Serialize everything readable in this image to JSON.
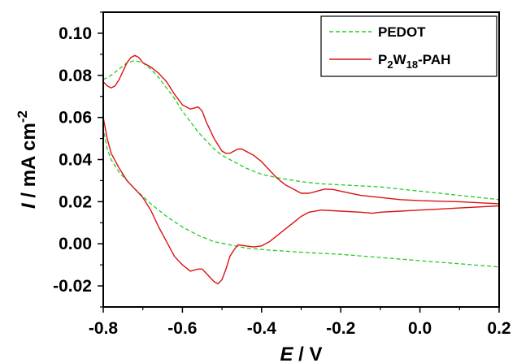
{
  "chart_data": {
    "type": "line",
    "xlabel": {
      "var": "E",
      "unit": " / V"
    },
    "ylabel": {
      "var": "I",
      "unit": " / mA cm",
      "exp": "-2"
    },
    "xlim": [
      -0.8,
      0.2
    ],
    "ylim": [
      -0.03,
      0.11
    ],
    "xticks": [
      -0.8,
      -0.6,
      -0.4,
      -0.2,
      0.0,
      0.2
    ],
    "xtick_labels": [
      "-0.8",
      "-0.6",
      "-0.4",
      "-0.2",
      "0.0",
      "0.2"
    ],
    "yticks": [
      -0.02,
      0.0,
      0.02,
      0.04,
      0.06,
      0.08,
      0.1
    ],
    "ytick_labels": [
      "-0.02",
      "0.00",
      "0.02",
      "0.04",
      "0.06",
      "0.08",
      "0.10"
    ],
    "grid": false,
    "legend_position": "top-right",
    "series": [
      {
        "name": "PEDOT",
        "name_parts": [
          {
            "t": "PEDOT"
          }
        ],
        "color": "#22cc22",
        "dash": true,
        "points": [
          [
            -0.8,
            0.078
          ],
          [
            -0.78,
            0.08
          ],
          [
            -0.76,
            0.083
          ],
          [
            -0.74,
            0.086
          ],
          [
            -0.72,
            0.087
          ],
          [
            -0.7,
            0.086
          ],
          [
            -0.68,
            0.083
          ],
          [
            -0.66,
            0.079
          ],
          [
            -0.64,
            0.074
          ],
          [
            -0.62,
            0.069
          ],
          [
            -0.6,
            0.063
          ],
          [
            -0.58,
            0.058
          ],
          [
            -0.56,
            0.053
          ],
          [
            -0.54,
            0.049
          ],
          [
            -0.52,
            0.045
          ],
          [
            -0.5,
            0.042
          ],
          [
            -0.48,
            0.04
          ],
          [
            -0.46,
            0.038
          ],
          [
            -0.44,
            0.036
          ],
          [
            -0.42,
            0.0345
          ],
          [
            -0.4,
            0.033
          ],
          [
            -0.35,
            0.031
          ],
          [
            -0.3,
            0.0295
          ],
          [
            -0.25,
            0.0285
          ],
          [
            -0.2,
            0.028
          ],
          [
            -0.1,
            0.027
          ],
          [
            0.0,
            0.025
          ],
          [
            0.1,
            0.023
          ],
          [
            0.2,
            0.021
          ],
          [
            0.2,
            0.008
          ],
          [
            0.2,
            -0.011
          ],
          [
            0.1,
            -0.0095
          ],
          [
            0.0,
            -0.008
          ],
          [
            -0.1,
            -0.0065
          ],
          [
            -0.2,
            -0.005
          ],
          [
            -0.3,
            -0.004
          ],
          [
            -0.38,
            -0.003
          ],
          [
            -0.44,
            -0.002
          ],
          [
            -0.48,
            -0.0005
          ],
          [
            -0.52,
            0.001
          ],
          [
            -0.56,
            0.004
          ],
          [
            -0.6,
            0.008
          ],
          [
            -0.64,
            0.013
          ],
          [
            -0.68,
            0.019
          ],
          [
            -0.72,
            0.026
          ],
          [
            -0.76,
            0.034
          ],
          [
            -0.78,
            0.04
          ],
          [
            -0.79,
            0.045
          ],
          [
            -0.8,
            0.055
          ],
          [
            -0.8,
            0.078
          ]
        ]
      },
      {
        "name": "P2W18-PAH",
        "name_parts": [
          {
            "t": "P"
          },
          {
            "t": "2",
            "sub": true
          },
          {
            "t": "W"
          },
          {
            "t": "18",
            "sub": true
          },
          {
            "t": "-PAH"
          }
        ],
        "color": "#dd1111",
        "dash": false,
        "points": [
          [
            -0.8,
            0.077
          ],
          [
            -0.79,
            0.075
          ],
          [
            -0.78,
            0.074
          ],
          [
            -0.77,
            0.075
          ],
          [
            -0.76,
            0.078
          ],
          [
            -0.75,
            0.082
          ],
          [
            -0.74,
            0.086
          ],
          [
            -0.73,
            0.0885
          ],
          [
            -0.72,
            0.0895
          ],
          [
            -0.71,
            0.0885
          ],
          [
            -0.7,
            0.086
          ],
          [
            -0.68,
            0.084
          ],
          [
            -0.66,
            0.081
          ],
          [
            -0.64,
            0.077
          ],
          [
            -0.62,
            0.071
          ],
          [
            -0.6,
            0.066
          ],
          [
            -0.58,
            0.064
          ],
          [
            -0.56,
            0.065
          ],
          [
            -0.55,
            0.063
          ],
          [
            -0.54,
            0.058
          ],
          [
            -0.52,
            0.05
          ],
          [
            -0.5,
            0.044
          ],
          [
            -0.49,
            0.043
          ],
          [
            -0.48,
            0.043
          ],
          [
            -0.46,
            0.045
          ],
          [
            -0.45,
            0.045
          ],
          [
            -0.44,
            0.044
          ],
          [
            -0.42,
            0.042
          ],
          [
            -0.4,
            0.039
          ],
          [
            -0.38,
            0.035
          ],
          [
            -0.36,
            0.031
          ],
          [
            -0.34,
            0.028
          ],
          [
            -0.32,
            0.026
          ],
          [
            -0.3,
            0.024
          ],
          [
            -0.28,
            0.024
          ],
          [
            -0.26,
            0.025
          ],
          [
            -0.24,
            0.026
          ],
          [
            -0.22,
            0.0258
          ],
          [
            -0.2,
            0.025
          ],
          [
            -0.15,
            0.023
          ],
          [
            -0.1,
            0.022
          ],
          [
            -0.05,
            0.021
          ],
          [
            0.0,
            0.0205
          ],
          [
            0.1,
            0.02
          ],
          [
            0.2,
            0.019
          ],
          [
            0.2,
            0.018
          ],
          [
            0.15,
            0.0175
          ],
          [
            0.1,
            0.017
          ],
          [
            0.05,
            0.0165
          ],
          [
            0.0,
            0.016
          ],
          [
            -0.05,
            0.0155
          ],
          [
            -0.1,
            0.015
          ],
          [
            -0.12,
            0.0145
          ],
          [
            -0.15,
            0.015
          ],
          [
            -0.2,
            0.0155
          ],
          [
            -0.25,
            0.016
          ],
          [
            -0.28,
            0.015
          ],
          [
            -0.3,
            0.013
          ],
          [
            -0.32,
            0.01
          ],
          [
            -0.34,
            0.007
          ],
          [
            -0.36,
            0.004
          ],
          [
            -0.38,
            0.001
          ],
          [
            -0.4,
            -0.001
          ],
          [
            -0.42,
            -0.0015
          ],
          [
            -0.44,
            -0.001
          ],
          [
            -0.46,
            -0.0005
          ],
          [
            -0.47,
            -0.003
          ],
          [
            -0.48,
            -0.006
          ],
          [
            -0.49,
            -0.012
          ],
          [
            -0.5,
            -0.017
          ],
          [
            -0.51,
            -0.019
          ],
          [
            -0.52,
            -0.018
          ],
          [
            -0.54,
            -0.014
          ],
          [
            -0.55,
            -0.012
          ],
          [
            -0.56,
            -0.012
          ],
          [
            -0.58,
            -0.013
          ],
          [
            -0.6,
            -0.01
          ],
          [
            -0.62,
            -0.006
          ],
          [
            -0.64,
            0.001
          ],
          [
            -0.66,
            0.008
          ],
          [
            -0.68,
            0.016
          ],
          [
            -0.7,
            0.022
          ],
          [
            -0.72,
            0.026
          ],
          [
            -0.74,
            0.03
          ],
          [
            -0.76,
            0.036
          ],
          [
            -0.78,
            0.043
          ],
          [
            -0.79,
            0.05
          ],
          [
            -0.8,
            0.06
          ],
          [
            -0.8,
            0.077
          ]
        ]
      }
    ]
  }
}
